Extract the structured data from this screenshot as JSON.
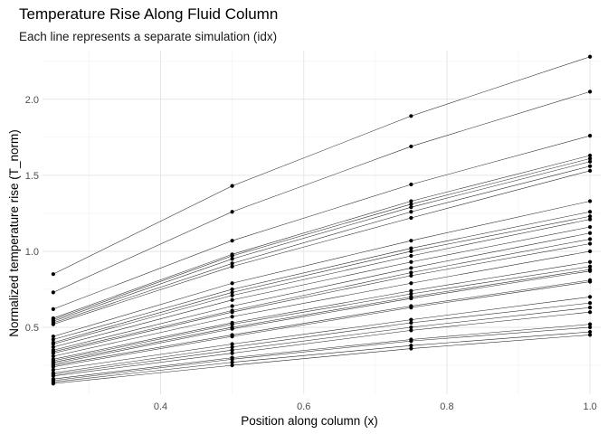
{
  "chart_data": {
    "type": "line",
    "title": "Temperature Rise Along Fluid Column",
    "subtitle": "Each line represents a separate simulation (idx)",
    "xlabel": "Position along column (x)",
    "ylabel": "Normalized temperature rise (T_norm)",
    "x": [
      0.25,
      0.5,
      0.75,
      1.0
    ],
    "xlim": [
      0.235,
      1.015
    ],
    "ylim": [
      0.06,
      2.32
    ],
    "x_ticks": [
      0.4,
      0.6,
      0.8,
      1.0
    ],
    "x_tick_labels": [
      "0.4",
      "0.6",
      "0.8",
      "1.0"
    ],
    "y_ticks": [
      0.5,
      1.0,
      1.5,
      2.0
    ],
    "y_tick_labels": [
      "0.5",
      "1.0",
      "1.5",
      "2.0"
    ],
    "grid": true,
    "line_color": "#000000",
    "point_color": "#000000",
    "series": [
      {
        "values": [
          0.85,
          1.43,
          1.89,
          2.28
        ]
      },
      {
        "values": [
          0.73,
          1.26,
          1.69,
          2.05
        ]
      },
      {
        "values": [
          0.62,
          1.07,
          1.44,
          1.76
        ]
      },
      {
        "values": [
          0.56,
          0.98,
          1.33,
          1.63
        ]
      },
      {
        "values": [
          0.55,
          0.97,
          1.31,
          1.61
        ]
      },
      {
        "values": [
          0.54,
          0.95,
          1.29,
          1.59
        ]
      },
      {
        "values": [
          0.53,
          0.92,
          1.26,
          1.56
        ]
      },
      {
        "values": [
          0.52,
          0.9,
          1.22,
          1.53
        ]
      },
      {
        "values": [
          0.44,
          0.79,
          1.07,
          1.33
        ]
      },
      {
        "values": [
          0.42,
          0.75,
          1.02,
          1.26
        ]
      },
      {
        "values": [
          0.4,
          0.73,
          1.0,
          1.23
        ]
      },
      {
        "values": [
          0.39,
          0.71,
          0.97,
          1.21
        ]
      },
      {
        "values": [
          0.37,
          0.68,
          0.93,
          1.16
        ]
      },
      {
        "values": [
          0.35,
          0.64,
          0.89,
          1.12
        ]
      },
      {
        "values": [
          0.34,
          0.61,
          0.86,
          1.08
        ]
      },
      {
        "values": [
          0.33,
          0.6,
          0.84,
          1.05
        ]
      },
      {
        "values": [
          0.31,
          0.57,
          0.79,
          1.0
        ]
      },
      {
        "values": [
          0.29,
          0.53,
          0.74,
          0.93
        ]
      },
      {
        "values": [
          0.28,
          0.52,
          0.72,
          0.9
        ]
      },
      {
        "values": [
          0.27,
          0.5,
          0.7,
          0.88
        ]
      },
      {
        "values": [
          0.26,
          0.49,
          0.69,
          0.87
        ]
      },
      {
        "values": [
          0.25,
          0.45,
          0.64,
          0.81
        ]
      },
      {
        "values": [
          0.24,
          0.44,
          0.63,
          0.8
        ]
      },
      {
        "values": [
          0.22,
          0.39,
          0.55,
          0.7
        ]
      },
      {
        "values": [
          0.2,
          0.37,
          0.53,
          0.66
        ]
      },
      {
        "values": [
          0.19,
          0.35,
          0.5,
          0.63
        ]
      },
      {
        "values": [
          0.18,
          0.33,
          0.48,
          0.6
        ]
      },
      {
        "values": [
          0.16,
          0.3,
          0.42,
          0.52
        ]
      },
      {
        "values": [
          0.15,
          0.29,
          0.41,
          0.5
        ]
      },
      {
        "values": [
          0.14,
          0.27,
          0.38,
          0.47
        ]
      },
      {
        "values": [
          0.13,
          0.25,
          0.36,
          0.45
        ]
      }
    ]
  }
}
